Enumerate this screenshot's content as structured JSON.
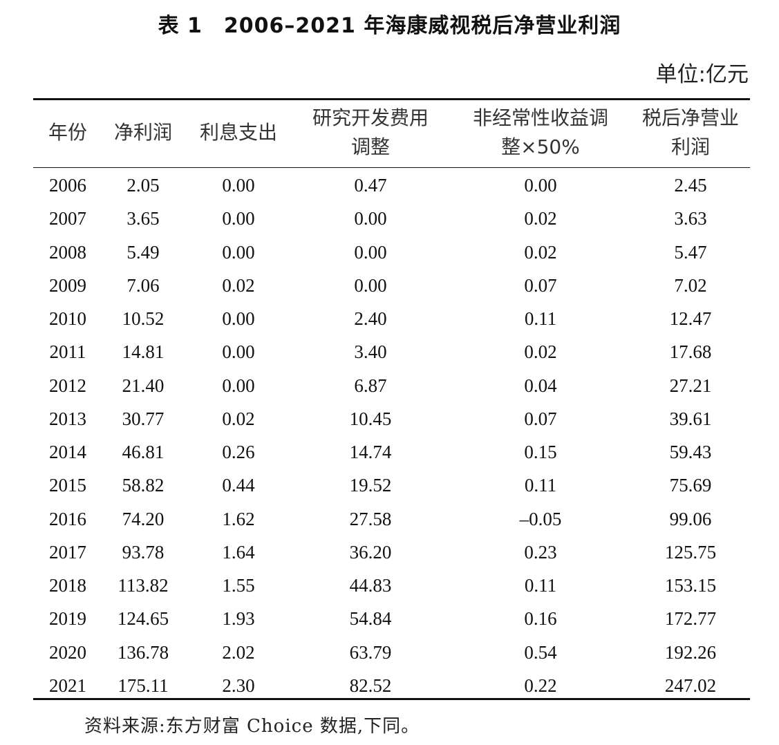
{
  "title": "表 1　2006–2021 年海康威视税后净营业利润",
  "unit": "单位:亿元",
  "headers": [
    [
      "年份"
    ],
    [
      "净利润"
    ],
    [
      "利息支出"
    ],
    [
      "研究开发费用",
      "调整"
    ],
    [
      "非经常性收益调",
      "整×50%"
    ],
    [
      "税后净营业",
      "利润"
    ]
  ],
  "rows": [
    [
      "2006",
      "2.05",
      "0.00",
      "0.47",
      "0.00",
      "2.45"
    ],
    [
      "2007",
      "3.65",
      "0.00",
      "0.00",
      "0.02",
      "3.63"
    ],
    [
      "2008",
      "5.49",
      "0.00",
      "0.00",
      "0.02",
      "5.47"
    ],
    [
      "2009",
      "7.06",
      "0.02",
      "0.00",
      "0.07",
      "7.02"
    ],
    [
      "2010",
      "10.52",
      "0.00",
      "2.40",
      "0.11",
      "12.47"
    ],
    [
      "2011",
      "14.81",
      "0.00",
      "3.40",
      "0.02",
      "17.68"
    ],
    [
      "2012",
      "21.40",
      "0.00",
      "6.87",
      "0.04",
      "27.21"
    ],
    [
      "2013",
      "30.77",
      "0.02",
      "10.45",
      "0.07",
      "39.61"
    ],
    [
      "2014",
      "46.81",
      "0.26",
      "14.74",
      "0.15",
      "59.43"
    ],
    [
      "2015",
      "58.82",
      "0.44",
      "19.52",
      "0.11",
      "75.69"
    ],
    [
      "2016",
      "74.20",
      "1.62",
      "27.58",
      "–0.05",
      "99.06"
    ],
    [
      "2017",
      "93.78",
      "1.64",
      "36.20",
      "0.23",
      "125.75"
    ],
    [
      "2018",
      "113.82",
      "1.55",
      "44.83",
      "0.11",
      "153.15"
    ],
    [
      "2019",
      "124.65",
      "1.93",
      "54.84",
      "0.16",
      "172.77"
    ],
    [
      "2020",
      "136.78",
      "2.02",
      "63.79",
      "0.54",
      "192.26"
    ],
    [
      "2021",
      "175.11",
      "2.30",
      "82.52",
      "0.22",
      "247.02"
    ]
  ],
  "source": "资料来源:东方财富 Choice 数据,下同。"
}
